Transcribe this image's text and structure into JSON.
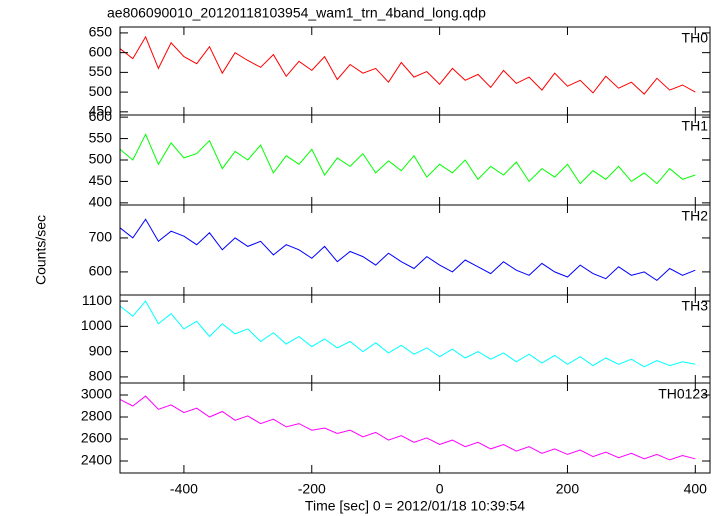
{
  "chart_data": [
    {
      "type": "line",
      "title": "ae806090010_20120118103954_wam1_trn_4band_long.qdp",
      "x": [
        -500,
        -480,
        -460,
        -440,
        -420,
        -400,
        -380,
        -360,
        -340,
        -320,
        -300,
        -280,
        -260,
        -240,
        -220,
        -200,
        -180,
        -160,
        -140,
        -120,
        -100,
        -80,
        -60,
        -40,
        -20,
        0,
        20,
        40,
        60,
        80,
        100,
        120,
        140,
        160,
        180,
        200,
        220,
        240,
        260,
        280,
        300,
        320,
        340,
        360,
        380,
        400
      ],
      "xlim": [
        -500,
        423
      ],
      "ylim": [
        442,
        665
      ],
      "yticks": [
        450,
        500,
        550,
        600,
        650
      ],
      "series": [
        {
          "name": "TH0",
          "color": "#ff0000",
          "values": [
            610,
            585,
            640,
            560,
            625,
            590,
            572,
            615,
            548,
            600,
            580,
            563,
            595,
            540,
            578,
            555,
            590,
            532,
            570,
            548,
            560,
            525,
            575,
            538,
            552,
            520,
            560,
            530,
            545,
            512,
            555,
            522,
            538,
            505,
            548,
            515,
            530,
            498,
            540,
            510,
            525,
            495,
            535,
            505,
            518,
            500
          ]
        }
      ]
    },
    {
      "type": "line",
      "x": [
        -500,
        -480,
        -460,
        -440,
        -420,
        -400,
        -380,
        -360,
        -340,
        -320,
        -300,
        -280,
        -260,
        -240,
        -220,
        -200,
        -180,
        -160,
        -140,
        -120,
        -100,
        -80,
        -60,
        -40,
        -20,
        0,
        20,
        40,
        60,
        80,
        100,
        120,
        140,
        160,
        180,
        200,
        220,
        240,
        260,
        280,
        300,
        320,
        340,
        360,
        380,
        400
      ],
      "xlim": [
        -500,
        423
      ],
      "ylim": [
        395,
        605
      ],
      "yticks": [
        400,
        450,
        500,
        550,
        600
      ],
      "series": [
        {
          "name": "TH1",
          "color": "#00ff00",
          "values": [
            525,
            500,
            560,
            490,
            540,
            505,
            515,
            545,
            480,
            520,
            500,
            535,
            470,
            510,
            490,
            525,
            465,
            505,
            485,
            515,
            470,
            498,
            475,
            510,
            460,
            490,
            470,
            500,
            455,
            485,
            465,
            495,
            450,
            480,
            460,
            490,
            445,
            475,
            455,
            485,
            450,
            470,
            445,
            480,
            455,
            465
          ]
        }
      ]
    },
    {
      "type": "line",
      "ylabel": "Counts/sec",
      "x": [
        -500,
        -480,
        -460,
        -440,
        -420,
        -400,
        -380,
        -360,
        -340,
        -320,
        -300,
        -280,
        -260,
        -240,
        -220,
        -200,
        -180,
        -160,
        -140,
        -120,
        -100,
        -80,
        -60,
        -40,
        -20,
        0,
        20,
        40,
        60,
        80,
        100,
        120,
        140,
        160,
        180,
        200,
        220,
        240,
        260,
        280,
        300,
        320,
        340,
        360,
        380,
        400
      ],
      "xlim": [
        -500,
        423
      ],
      "ylim": [
        532,
        797
      ],
      "yticks": [
        600,
        700
      ],
      "series": [
        {
          "name": "TH2",
          "color": "#0000ff",
          "values": [
            730,
            700,
            755,
            690,
            720,
            705,
            680,
            715,
            665,
            700,
            675,
            690,
            650,
            680,
            665,
            640,
            675,
            630,
            660,
            645,
            620,
            655,
            630,
            610,
            645,
            620,
            600,
            635,
            615,
            595,
            630,
            605,
            590,
            625,
            600,
            585,
            620,
            595,
            580,
            615,
            590,
            600,
            575,
            610,
            590,
            605
          ]
        }
      ]
    },
    {
      "type": "line",
      "x": [
        -500,
        -480,
        -460,
        -440,
        -420,
        -400,
        -380,
        -360,
        -340,
        -320,
        -300,
        -280,
        -260,
        -240,
        -220,
        -200,
        -180,
        -160,
        -140,
        -120,
        -100,
        -80,
        -60,
        -40,
        -20,
        0,
        20,
        40,
        60,
        80,
        100,
        120,
        140,
        160,
        180,
        200,
        220,
        240,
        260,
        280,
        300,
        320,
        340,
        360,
        380,
        400
      ],
      "xlim": [
        -500,
        423
      ],
      "ylim": [
        776,
        1124
      ],
      "yticks": [
        800,
        900,
        1000,
        1100
      ],
      "series": [
        {
          "name": "TH3",
          "color": "#00ffff",
          "values": [
            1080,
            1040,
            1100,
            1010,
            1050,
            990,
            1020,
            960,
            1010,
            970,
            990,
            940,
            975,
            930,
            960,
            920,
            950,
            915,
            940,
            900,
            935,
            895,
            925,
            890,
            915,
            880,
            910,
            875,
            900,
            870,
            895,
            860,
            890,
            855,
            885,
            850,
            880,
            845,
            875,
            850,
            870,
            840,
            865,
            845,
            860,
            850
          ]
        }
      ]
    },
    {
      "type": "line",
      "xlabel": "Time [sec] 0 = 2012/01/18 10:39:54",
      "x": [
        -500,
        -480,
        -460,
        -440,
        -420,
        -400,
        -380,
        -360,
        -340,
        -320,
        -300,
        -280,
        -260,
        -240,
        -220,
        -200,
        -180,
        -160,
        -140,
        -120,
        -100,
        -80,
        -60,
        -40,
        -20,
        0,
        20,
        40,
        60,
        80,
        100,
        120,
        140,
        160,
        180,
        200,
        220,
        240,
        260,
        280,
        300,
        320,
        340,
        360,
        380,
        400
      ],
      "xlim": [
        -500,
        423
      ],
      "xticks": [
        -400,
        -200,
        0,
        200,
        400
      ],
      "ylim": [
        2291,
        3109
      ],
      "yticks": [
        2400,
        2600,
        2800,
        3000
      ],
      "series": [
        {
          "name": "TH0123",
          "color": "#ff00ff",
          "values": [
            2960,
            2900,
            2990,
            2870,
            2910,
            2840,
            2880,
            2800,
            2850,
            2770,
            2810,
            2740,
            2780,
            2710,
            2740,
            2680,
            2700,
            2650,
            2680,
            2620,
            2660,
            2590,
            2630,
            2570,
            2610,
            2550,
            2590,
            2530,
            2570,
            2510,
            2550,
            2490,
            2530,
            2470,
            2510,
            2460,
            2500,
            2440,
            2480,
            2430,
            2470,
            2420,
            2460,
            2410,
            2450,
            2420
          ]
        }
      ]
    }
  ]
}
